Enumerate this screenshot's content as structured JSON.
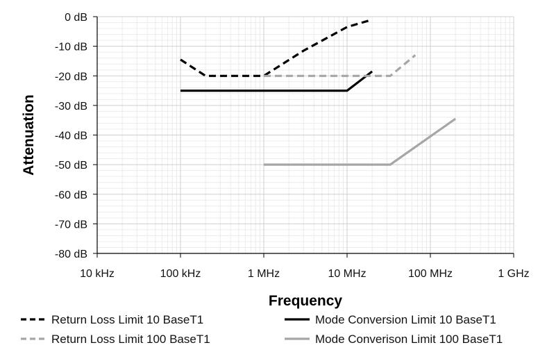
{
  "chart_data": {
    "type": "line",
    "title": "",
    "xlabel": "Frequency",
    "ylabel": "Attenuation",
    "x_scale": "log",
    "xlim": [
      10000,
      1000000000
    ],
    "ylim": [
      -80,
      0
    ],
    "x_ticks": [
      {
        "value": 10000,
        "label": "10 kHz"
      },
      {
        "value": 100000,
        "label": "100 kHz"
      },
      {
        "value": 1000000,
        "label": "1 MHz"
      },
      {
        "value": 10000000,
        "label": "10 MHz"
      },
      {
        "value": 100000000,
        "label": "100 MHz"
      },
      {
        "value": 1000000000,
        "label": "1 GHz"
      }
    ],
    "y_ticks": [
      {
        "value": 0,
        "label": "0 dB"
      },
      {
        "value": -10,
        "label": "-10 dB"
      },
      {
        "value": -20,
        "label": "-20 dB"
      },
      {
        "value": -30,
        "label": "-30 dB"
      },
      {
        "value": -40,
        "label": "-40 dB"
      },
      {
        "value": -50,
        "label": "-50 dB"
      },
      {
        "value": -60,
        "label": "-60 dB"
      },
      {
        "value": -70,
        "label": "-70 dB"
      },
      {
        "value": -80,
        "label": "-80 dB"
      }
    ],
    "grid": "major and minor",
    "legend_position": "bottom",
    "series": [
      {
        "name": "Return Loss Limit 10 BaseT1",
        "color": "#000000",
        "dashed": true,
        "points": [
          [
            100000,
            -14.5
          ],
          [
            200000,
            -20
          ],
          [
            1000000,
            -20
          ],
          [
            3000000,
            -11.5
          ],
          [
            10000000,
            -3.5
          ],
          [
            20000000,
            -1
          ]
        ]
      },
      {
        "name": "Mode Conversion Limit 10 BaseT1",
        "color": "#000000",
        "dashed": false,
        "points": [
          [
            100000,
            -25
          ],
          [
            10000000,
            -25
          ],
          [
            20000000,
            -18.5
          ]
        ]
      },
      {
        "name": "Return Loss Limit 100 BaseT1",
        "color": "#a6a6a6",
        "dashed": true,
        "points": [
          [
            1000000,
            -20
          ],
          [
            33000000,
            -20
          ],
          [
            66000000,
            -13
          ]
        ]
      },
      {
        "name": "Mode Converison Limit 100 BaseT1",
        "color": "#a6a6a6",
        "dashed": false,
        "points": [
          [
            1000000,
            -50
          ],
          [
            33000000,
            -50
          ],
          [
            200000000,
            -34.5
          ]
        ]
      }
    ]
  }
}
